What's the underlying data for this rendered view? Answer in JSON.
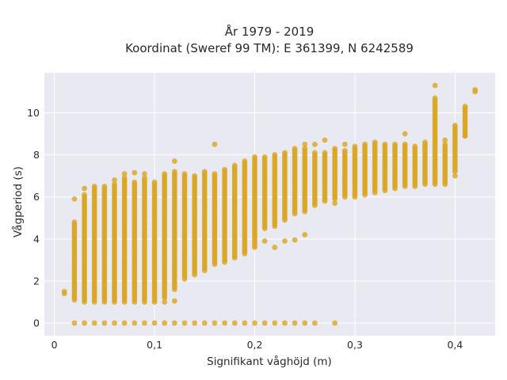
{
  "chart_data": {
    "type": "scatter",
    "title": "År 1979 - 2019",
    "subtitle": "Koordinat (Sweref 99 TM): E 361399, N 6242589",
    "xlabel": "Signifikant våghöjd (m)",
    "ylabel": "Vågperiod (s)",
    "xlim": [
      -0.01,
      0.44
    ],
    "ylim": [
      -0.6,
      11.9
    ],
    "x_ticks": [
      0,
      0.1,
      0.2,
      0.3,
      0.4
    ],
    "x_tick_labels": [
      "0",
      "0,1",
      "0,2",
      "0,3",
      "0,4"
    ],
    "y_ticks": [
      0,
      2,
      4,
      6,
      8,
      10
    ],
    "y_tick_labels": [
      "0",
      "2",
      "4",
      "6",
      "8",
      "10"
    ],
    "grid": true,
    "colors": {
      "marker": "#DAA520",
      "plot_bg": "#E9E9F2",
      "grid": "#ffffff",
      "text": "#2a2a2a"
    },
    "columns": [
      {
        "x": 0.01,
        "segments": [
          [
            1.4,
            1.5
          ]
        ]
      },
      {
        "x": 0.02,
        "segments": [
          [
            1.1,
            4.8
          ]
        ],
        "points": [
          0,
          5.9
        ]
      },
      {
        "x": 0.03,
        "segments": [
          [
            1.0,
            6.1
          ]
        ],
        "points": [
          0,
          6.4
        ]
      },
      {
        "x": 0.04,
        "segments": [
          [
            1.0,
            6.5
          ]
        ],
        "points": [
          0
        ]
      },
      {
        "x": 0.05,
        "segments": [
          [
            1.0,
            6.5
          ]
        ],
        "points": [
          0
        ]
      },
      {
        "x": 0.06,
        "segments": [
          [
            1.0,
            6.6
          ]
        ],
        "points": [
          0,
          6.8
        ]
      },
      {
        "x": 0.07,
        "segments": [
          [
            1.0,
            6.9
          ]
        ],
        "points": [
          0,
          7.1
        ]
      },
      {
        "x": 0.08,
        "segments": [
          [
            1.0,
            6.7
          ]
        ],
        "points": [
          0,
          7.15
        ]
      },
      {
        "x": 0.09,
        "segments": [
          [
            1.1,
            6.9
          ]
        ],
        "points": [
          0,
          1.0,
          7.1
        ]
      },
      {
        "x": 0.1,
        "segments": [
          [
            1.1,
            6.7
          ]
        ],
        "points": [
          0,
          1.0
        ]
      },
      {
        "x": 0.11,
        "segments": [
          [
            1.2,
            7.1
          ]
        ],
        "points": [
          0,
          1.0
        ]
      },
      {
        "x": 0.12,
        "segments": [
          [
            1.6,
            7.2
          ]
        ],
        "points": [
          0,
          1.05,
          7.7
        ]
      },
      {
        "x": 0.13,
        "segments": [
          [
            2.1,
            7.1
          ]
        ],
        "points": [
          0
        ]
      },
      {
        "x": 0.14,
        "segments": [
          [
            2.3,
            7.0
          ]
        ],
        "points": [
          0
        ]
      },
      {
        "x": 0.15,
        "segments": [
          [
            2.5,
            7.2
          ]
        ],
        "points": [
          0
        ]
      },
      {
        "x": 0.16,
        "segments": [
          [
            2.8,
            7.1
          ]
        ],
        "points": [
          0,
          8.5
        ]
      },
      {
        "x": 0.17,
        "segments": [
          [
            2.9,
            7.3
          ]
        ],
        "points": [
          0
        ]
      },
      {
        "x": 0.18,
        "segments": [
          [
            3.1,
            7.5
          ]
        ],
        "points": [
          0
        ]
      },
      {
        "x": 0.19,
        "segments": [
          [
            3.3,
            7.7
          ]
        ],
        "points": [
          0
        ]
      },
      {
        "x": 0.2,
        "segments": [
          [
            3.6,
            7.9
          ]
        ],
        "points": [
          0
        ]
      },
      {
        "x": 0.21,
        "segments": [
          [
            4.5,
            7.9
          ]
        ],
        "points": [
          0,
          3.9
        ]
      },
      {
        "x": 0.22,
        "segments": [
          [
            4.6,
            8.0
          ]
        ],
        "points": [
          0,
          3.6
        ]
      },
      {
        "x": 0.23,
        "segments": [
          [
            4.9,
            8.1
          ]
        ],
        "points": [
          0,
          3.9
        ]
      },
      {
        "x": 0.24,
        "segments": [
          [
            5.2,
            8.3
          ]
        ],
        "points": [
          0,
          3.95
        ]
      },
      {
        "x": 0.25,
        "segments": [
          [
            5.3,
            8.3
          ]
        ],
        "points": [
          0,
          4.2,
          8.5
        ]
      },
      {
        "x": 0.26,
        "segments": [
          [
            5.6,
            8.1
          ]
        ],
        "points": [
          0,
          8.5
        ]
      },
      {
        "x": 0.27,
        "segments": [
          [
            5.8,
            8.1
          ]
        ],
        "points": [
          8.7
        ]
      },
      {
        "x": 0.28,
        "segments": [
          [
            5.9,
            8.3
          ]
        ],
        "points": [
          0,
          5.7
        ]
      },
      {
        "x": 0.29,
        "segments": [
          [
            6.0,
            8.2
          ]
        ],
        "points": [
          8.5
        ]
      },
      {
        "x": 0.3,
        "segments": [
          [
            6.0,
            8.4
          ]
        ]
      },
      {
        "x": 0.31,
        "segments": [
          [
            6.1,
            8.5
          ]
        ]
      },
      {
        "x": 0.32,
        "segments": [
          [
            6.2,
            8.5
          ]
        ],
        "points": [
          8.6
        ]
      },
      {
        "x": 0.33,
        "segments": [
          [
            6.3,
            8.5
          ]
        ]
      },
      {
        "x": 0.34,
        "segments": [
          [
            6.4,
            8.5
          ]
        ]
      },
      {
        "x": 0.35,
        "segments": [
          [
            6.5,
            8.5
          ]
        ],
        "points": [
          9.0
        ]
      },
      {
        "x": 0.36,
        "segments": [
          [
            6.5,
            8.4
          ]
        ]
      },
      {
        "x": 0.37,
        "segments": [
          [
            6.6,
            8.5
          ]
        ],
        "points": [
          8.6
        ]
      },
      {
        "x": 0.38,
        "segments": [
          [
            6.6,
            10.7
          ]
        ],
        "points": [
          11.3
        ]
      },
      {
        "x": 0.39,
        "segments": [
          [
            6.6,
            8.5
          ]
        ],
        "points": [
          8.7
        ]
      },
      {
        "x": 0.4,
        "segments": [
          [
            7.2,
            9.4
          ]
        ],
        "points": [
          7.0
        ]
      },
      {
        "x": 0.41,
        "segments": [
          [
            8.9,
            10.3
          ]
        ],
        "points": [
          8.9
        ]
      },
      {
        "x": 0.42,
        "segments": [
          [
            11.0,
            11.1
          ]
        ]
      }
    ]
  }
}
